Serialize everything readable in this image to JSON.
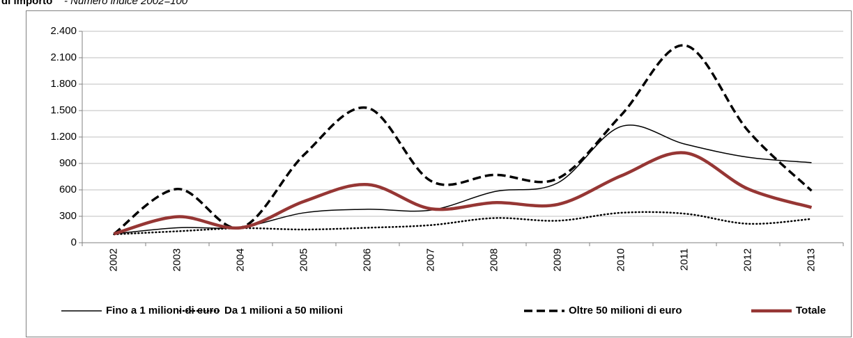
{
  "chart_data": {
    "type": "line",
    "title": "di importo",
    "subtitle": "- Numero indice 2002=100",
    "categories": [
      "2002",
      "2003",
      "2004",
      "2005",
      "2006",
      "2007",
      "2008",
      "2009",
      "2010",
      "2011",
      "2012",
      "2013"
    ],
    "series": [
      {
        "name": "Fino a 1 milioni di euro",
        "color": "#000000",
        "line_style": "solid",
        "values": [
          100,
          170,
          175,
          340,
          380,
          370,
          580,
          680,
          1320,
          1120,
          970,
          910
        ]
      },
      {
        "name": "Da 1 milioni a 50 milioni",
        "color": "#000000",
        "line_style": "dotted",
        "values": [
          95,
          130,
          165,
          150,
          170,
          200,
          280,
          250,
          340,
          330,
          215,
          270
        ]
      },
      {
        "name": "Oltre 50 milioni di euro",
        "color": "#000000",
        "line_style": "dashed",
        "values": [
          100,
          610,
          170,
          1000,
          1530,
          700,
          770,
          730,
          1450,
          2240,
          1270,
          590
        ]
      },
      {
        "name": "Totale",
        "color": "#963634",
        "line_style": "thick",
        "values": [
          100,
          295,
          170,
          470,
          660,
          385,
          455,
          435,
          760,
          1020,
          610,
          400
        ]
      }
    ],
    "ylim": [
      0,
      2400
    ],
    "yticks": [
      0,
      300,
      600,
      900,
      {
        "value": 1200,
        "label": "1.200"
      },
      {
        "value": 1500,
        "label": "1.500"
      },
      {
        "value": 1800,
        "label": "1.800"
      },
      {
        "value": 2100,
        "label": "2.100"
      },
      {
        "value": 2400,
        "label": "2.400"
      }
    ],
    "grid": true,
    "legend": "bottom"
  }
}
